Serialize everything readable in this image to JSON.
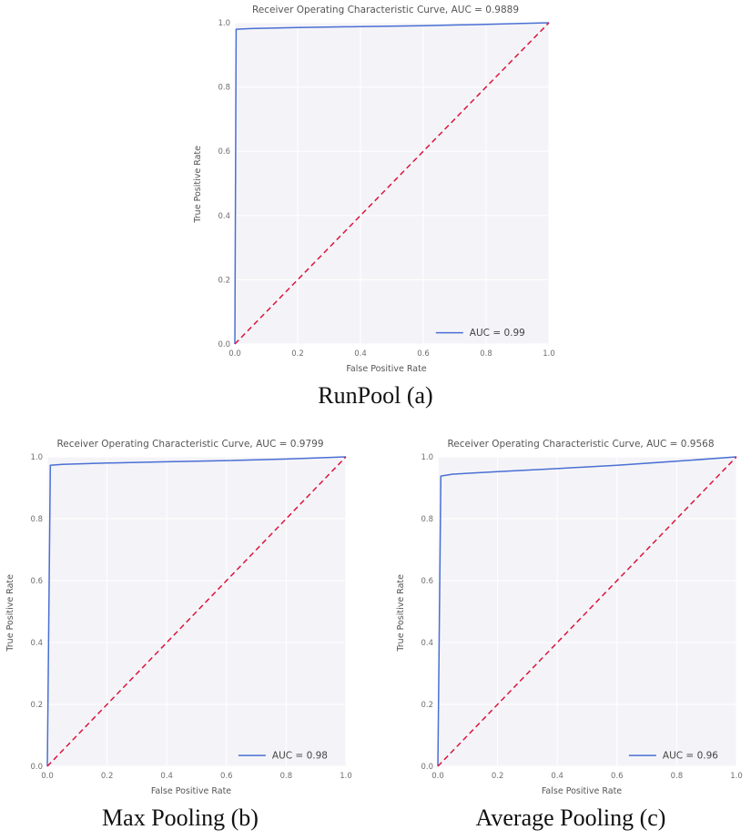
{
  "style": {
    "page_bg": "#ffffff",
    "plot_bg": "#f4f4f8",
    "grid": "#ffffff",
    "roc_color": "#4a6fd4",
    "diagonal_color": "#dc143c",
    "text_color": "#555555"
  },
  "chart_data": [
    {
      "type": "line",
      "title": "Receiver Operating Characteristic Curve, AUC = 0.9889",
      "caption": "RunPool (a)",
      "auc": 0.9889,
      "xlabel": "False Positive Rate",
      "ylabel": "True Positive Rate",
      "xlim": [
        0,
        1
      ],
      "ylim": [
        0,
        1
      ],
      "xticks": [
        "0.0",
        "0.2",
        "0.4",
        "0.6",
        "0.8",
        "1.0"
      ],
      "yticks": [
        "0.0",
        "0.2",
        "0.4",
        "0.6",
        "0.8",
        "1.0"
      ],
      "grid": true,
      "legend": {
        "position": "lower right",
        "entries": [
          {
            "label": "AUC = 0.99",
            "color": "#4a6fd4"
          }
        ]
      },
      "series": [
        {
          "name": "roc-curve",
          "color": "#4a6fd4",
          "linestyle": "solid",
          "x": [
            0,
            0.004,
            0.05,
            0.2,
            0.4,
            0.6,
            0.8,
            1.0
          ],
          "y": [
            0,
            0.98,
            0.982,
            0.985,
            0.988,
            0.991,
            0.995,
            1.0
          ]
        },
        {
          "name": "chance-diagonal",
          "color": "#dc143c",
          "linestyle": "dashed",
          "x": [
            0,
            1
          ],
          "y": [
            0,
            1
          ]
        }
      ]
    },
    {
      "type": "line",
      "title": "Receiver Operating Characteristic Curve, AUC = 0.9799",
      "caption": "Max Pooling (b)",
      "auc": 0.9799,
      "xlabel": "False Positive Rate",
      "ylabel": "True Positive Rate",
      "xlim": [
        0,
        1
      ],
      "ylim": [
        0,
        1
      ],
      "xticks": [
        "0.0",
        "0.2",
        "0.4",
        "0.6",
        "0.8",
        "1.0"
      ],
      "yticks": [
        "0.0",
        "0.2",
        "0.4",
        "0.6",
        "0.8",
        "1.0"
      ],
      "grid": true,
      "legend": {
        "position": "lower right",
        "entries": [
          {
            "label": "AUC = 0.98",
            "color": "#4a6fd4"
          }
        ]
      },
      "series": [
        {
          "name": "roc-curve",
          "color": "#4a6fd4",
          "linestyle": "solid",
          "x": [
            0,
            0.01,
            0.05,
            0.2,
            0.4,
            0.6,
            0.8,
            1.0
          ],
          "y": [
            0,
            0.973,
            0.976,
            0.98,
            0.984,
            0.988,
            0.993,
            1.0
          ]
        },
        {
          "name": "chance-diagonal",
          "color": "#dc143c",
          "linestyle": "dashed",
          "x": [
            0,
            1
          ],
          "y": [
            0,
            1
          ]
        }
      ]
    },
    {
      "type": "line",
      "title": "Receiver Operating Characteristic Curve, AUC = 0.9568",
      "caption": "Average Pooling (c)",
      "auc": 0.9568,
      "xlabel": "False Positive Rate",
      "ylabel": "True Positive Rate",
      "xlim": [
        0,
        1
      ],
      "ylim": [
        0,
        1
      ],
      "xticks": [
        "0.0",
        "0.2",
        "0.4",
        "0.6",
        "0.8",
        "1.0"
      ],
      "yticks": [
        "0.0",
        "0.2",
        "0.4",
        "0.6",
        "0.8",
        "1.0"
      ],
      "grid": true,
      "legend": {
        "position": "lower right",
        "entries": [
          {
            "label": "AUC = 0.96",
            "color": "#4a6fd4"
          }
        ]
      },
      "series": [
        {
          "name": "roc-curve",
          "color": "#4a6fd4",
          "linestyle": "solid",
          "x": [
            0,
            0.01,
            0.05,
            0.2,
            0.4,
            0.6,
            0.8,
            1.0
          ],
          "y": [
            0,
            0.938,
            0.944,
            0.952,
            0.962,
            0.973,
            0.986,
            1.0
          ]
        },
        {
          "name": "chance-diagonal",
          "color": "#dc143c",
          "linestyle": "dashed",
          "x": [
            0,
            1
          ],
          "y": [
            0,
            1
          ]
        }
      ]
    }
  ]
}
